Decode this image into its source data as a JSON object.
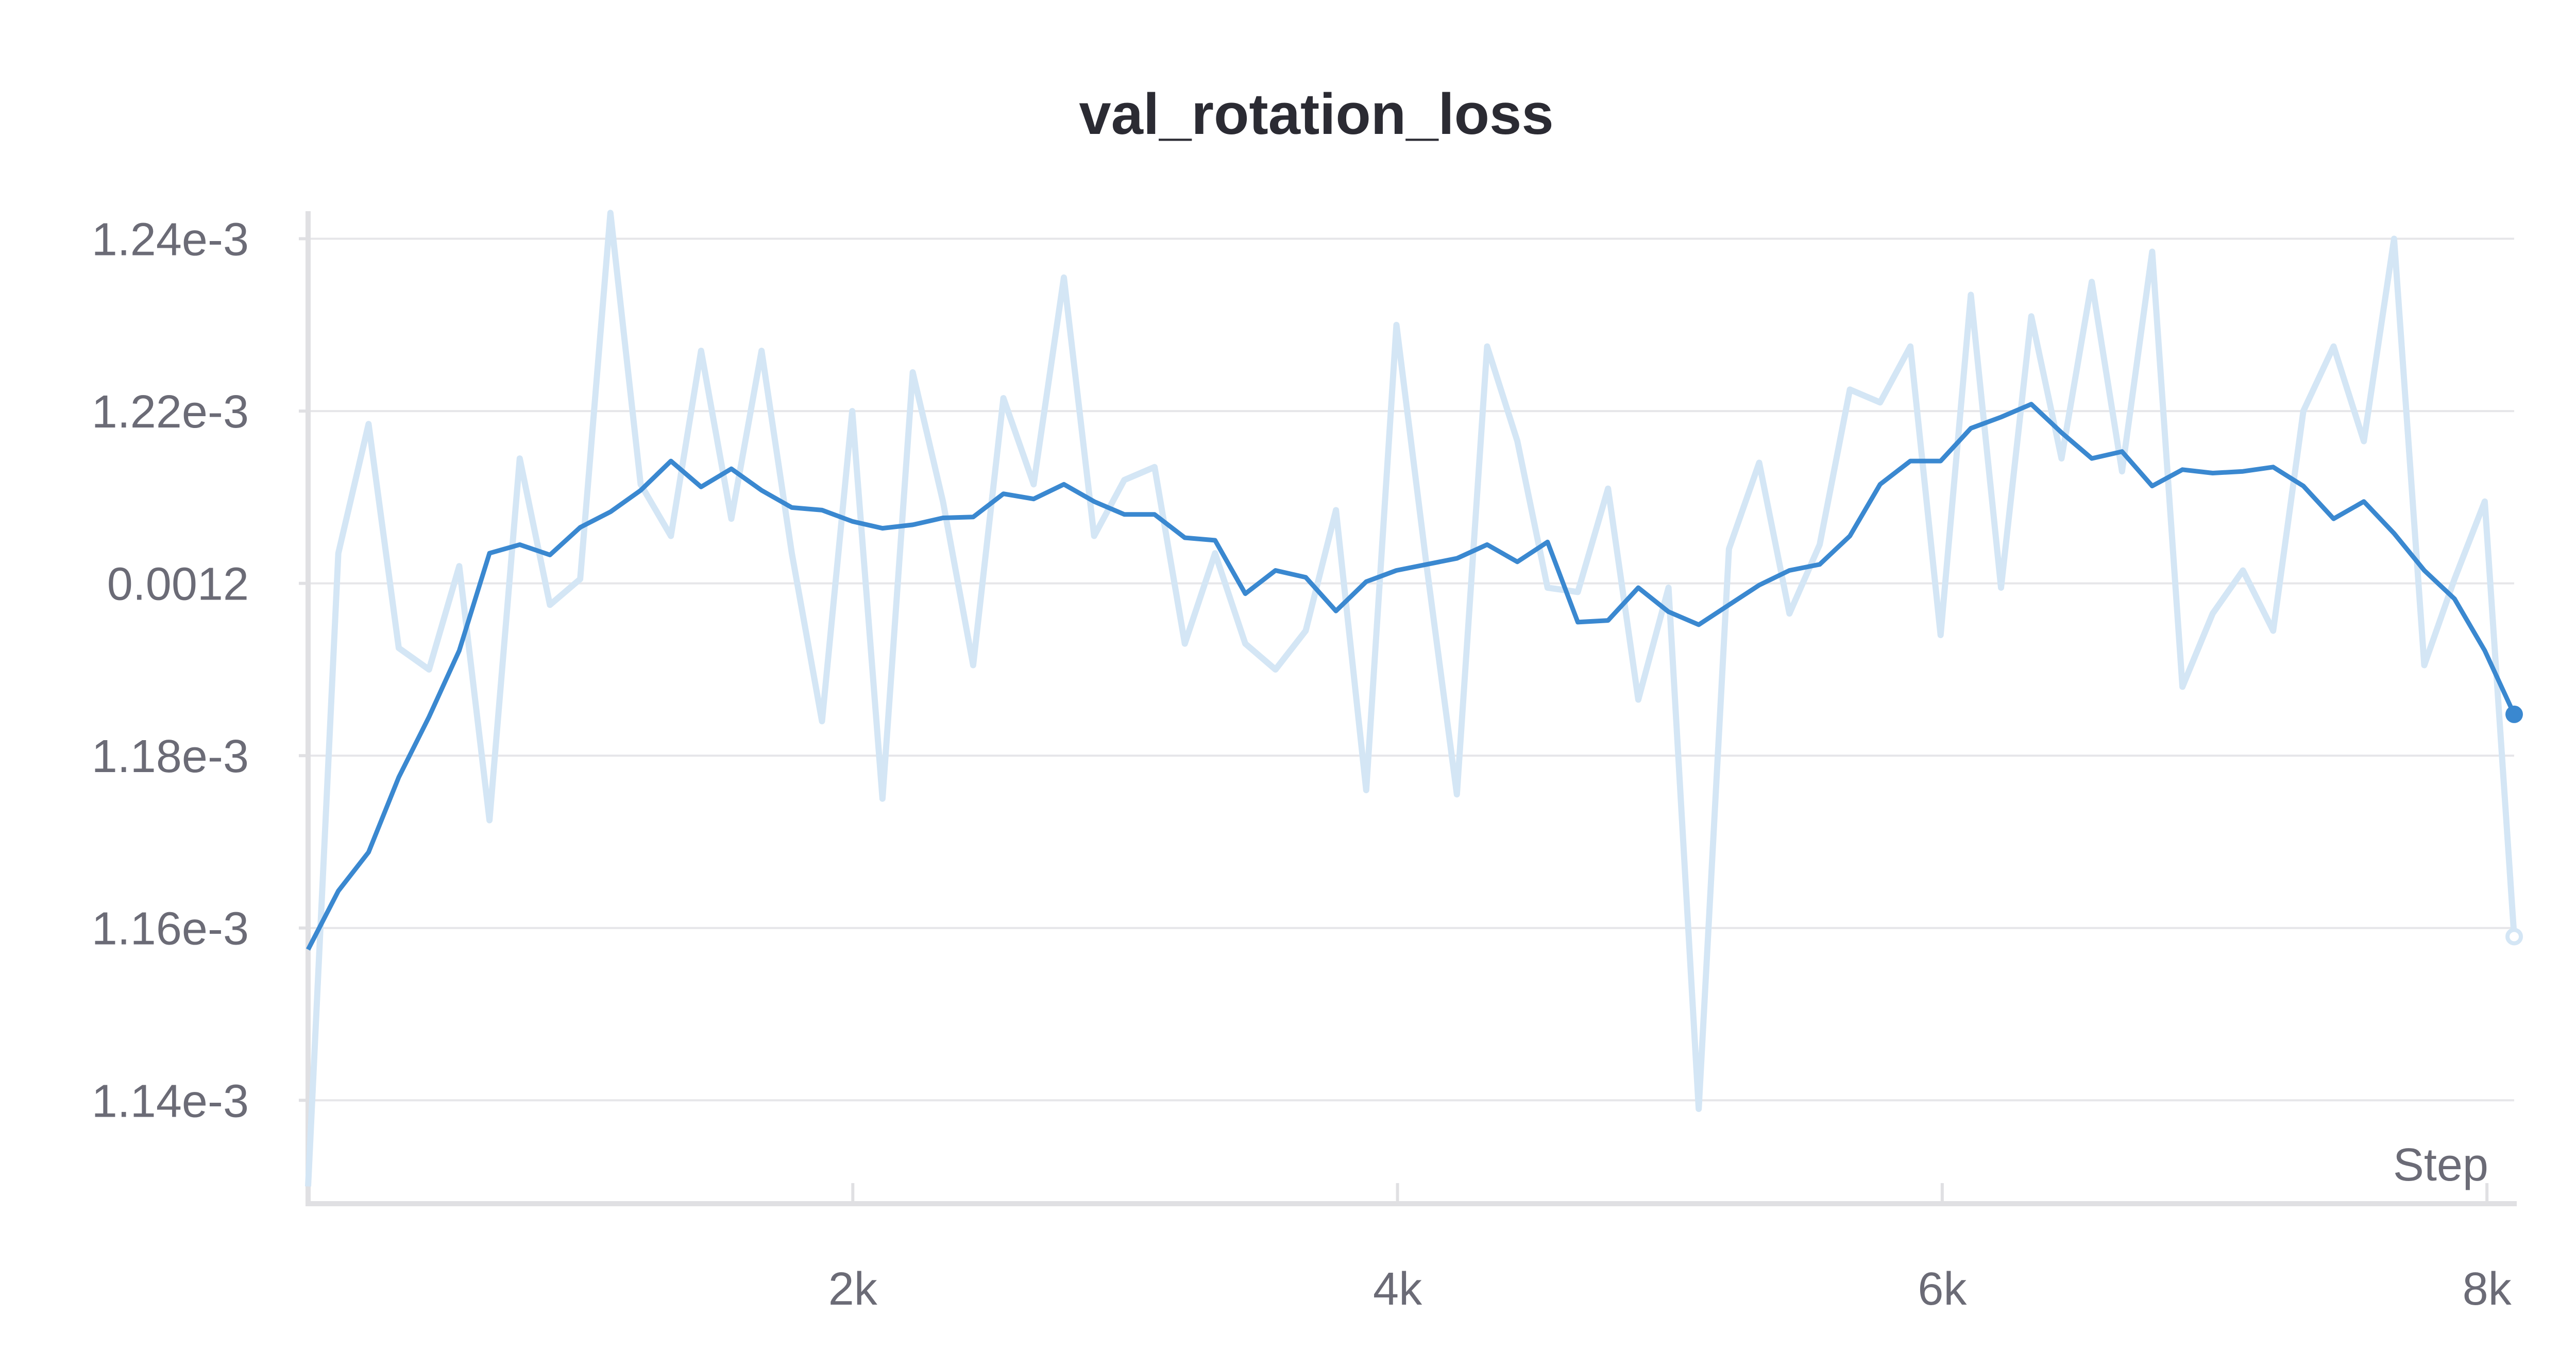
{
  "chart_data": {
    "type": "line",
    "title": "val_rotation_loss",
    "xlabel": "Step",
    "ylabel": "",
    "xlim": [
      0,
      8100
    ],
    "ylim": [
      0.001128,
      0.0012432
    ],
    "x_ticks": [
      {
        "value": 2000,
        "label": "2k"
      },
      {
        "value": 4000,
        "label": "4k"
      },
      {
        "value": 6000,
        "label": "6k"
      },
      {
        "value": 8000,
        "label": "8k"
      }
    ],
    "y_ticks": [
      {
        "value": 0.00114,
        "label": "1.14e-3"
      },
      {
        "value": 0.00116,
        "label": "1.16e-3"
      },
      {
        "value": 0.00118,
        "label": "1.18e-3"
      },
      {
        "value": 0.0012,
        "label": "0.0012"
      },
      {
        "value": 0.00122,
        "label": "1.22e-3"
      },
      {
        "value": 0.00124,
        "label": "1.24e-3"
      }
    ],
    "grid": true,
    "colors": {
      "raw": "#d4e6f5",
      "smoothed": "#3a88d0"
    },
    "x": [
      0,
      111,
      222,
      333,
      444,
      555,
      666,
      777,
      888,
      999,
      1110,
      1221,
      1332,
      1443,
      1554,
      1665,
      1776,
      1887,
      1998,
      2109,
      2220,
      2331,
      2442,
      2553,
      2664,
      2775,
      2886,
      2997,
      3108,
      3219,
      3330,
      3441,
      3552,
      3663,
      3774,
      3885,
      3996,
      4107,
      4218,
      4329,
      4440,
      4551,
      4662,
      4773,
      4884,
      4995,
      5106,
      5217,
      5328,
      5439,
      5550,
      5661,
      5772,
      5883,
      5994,
      6105,
      6216,
      6327,
      6438,
      6549,
      6660,
      6771,
      6882,
      6993,
      7104,
      7215,
      7326,
      7437,
      7548,
      7659,
      7770,
      7881,
      7992,
      8100
    ],
    "series": [
      {
        "role": "raw",
        "values": [
          0.00113,
          0.0012035,
          0.0012185,
          0.0011925,
          0.00119,
          0.001202,
          0.0011725,
          0.0012145,
          0.0011975,
          0.0012005,
          0.001243,
          0.0012115,
          0.0012055,
          0.001227,
          0.0012075,
          0.001227,
          0.0012035,
          0.001184,
          0.00122,
          0.001175,
          0.0012245,
          0.0012095,
          0.0011905,
          0.0012215,
          0.0012115,
          0.0012355,
          0.0012055,
          0.001212,
          0.0012135,
          0.001193,
          0.0012035,
          0.001193,
          0.00119,
          0.0011945,
          0.0012085,
          0.001176,
          0.00123,
          0.001202,
          0.0011755,
          0.0012275,
          0.0012165,
          0.0011995,
          0.001199,
          0.001211,
          0.0011865,
          0.0011995,
          0.001139,
          0.001204,
          0.001214,
          0.0011965,
          0.0012045,
          0.0012225,
          0.001221,
          0.0012275,
          0.001194,
          0.0012335,
          0.0011995,
          0.001231,
          0.0012145,
          0.001235,
          0.001213,
          0.0012385,
          0.001188,
          0.0011965,
          0.0012015,
          0.0011945,
          0.00122,
          0.0012275,
          0.0012165,
          0.00124,
          0.0011905,
          0.0012005,
          0.0012095,
          0.001159
        ]
      },
      {
        "role": "smoothed",
        "values": [
          0.0011575,
          0.0011643,
          0.0011688,
          0.0011775,
          0.0011845,
          0.0011922,
          0.0012035,
          0.0012045,
          0.0012033,
          0.0012065,
          0.0012083,
          0.0012108,
          0.0012142,
          0.0012112,
          0.0012133,
          0.0012108,
          0.0012088,
          0.0012085,
          0.0012072,
          0.0012064,
          0.0012068,
          0.0012076,
          0.0012077,
          0.0012104,
          0.0012098,
          0.0012115,
          0.0012095,
          0.001208,
          0.001208,
          0.0012053,
          0.001205,
          0.0011988,
          0.0012015,
          0.0012007,
          0.0011968,
          0.0012002,
          0.0012015,
          0.0012022,
          0.0012029,
          0.0012045,
          0.0012025,
          0.0012048,
          0.0011955,
          0.0011957,
          0.0011995,
          0.0011967,
          0.0011952,
          0.0011975,
          0.0011998,
          0.0012015,
          0.0012022,
          0.0012055,
          0.0012115,
          0.0012142,
          0.0012142,
          0.001218,
          0.0012193,
          0.0012208,
          0.0012175,
          0.0012145,
          0.0012153,
          0.0012113,
          0.0012132,
          0.0012128,
          0.001213,
          0.0012135,
          0.0012113,
          0.0012075,
          0.0012095,
          0.0012058,
          0.0012015,
          0.0011982,
          0.0011922,
          0.0011848
        ]
      }
    ]
  }
}
